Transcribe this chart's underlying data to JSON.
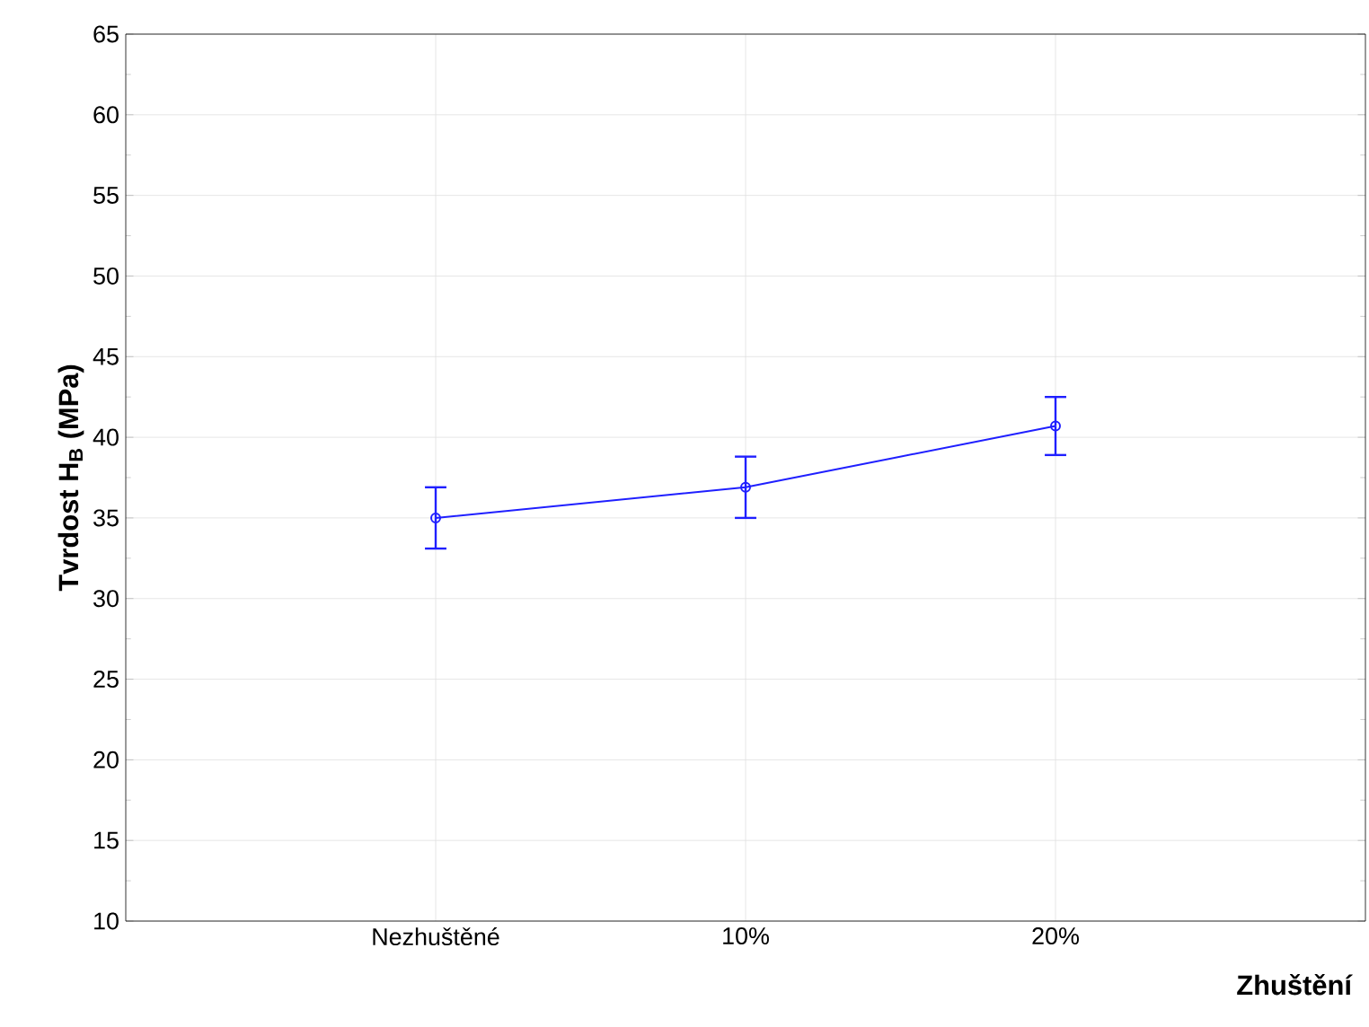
{
  "chart_data": {
    "type": "line",
    "xlabel": "Zhuštění",
    "ylabel": "Tvrdost H$_{B}$ (MPa)",
    "categories": [
      "Nezhuštěné",
      "10%",
      "20%"
    ],
    "series": [
      {
        "color": "#1f1fff",
        "values": [
          35.0,
          36.9,
          40.7
        ],
        "errors": [
          1.9,
          1.9,
          1.8
        ]
      }
    ],
    "ylim": [
      10,
      65
    ],
    "yticks": [
      10,
      15,
      20,
      25,
      30,
      35,
      40,
      45,
      50,
      55,
      60,
      65
    ],
    "grid": true,
    "marker": "circle",
    "line_style": "solid"
  }
}
